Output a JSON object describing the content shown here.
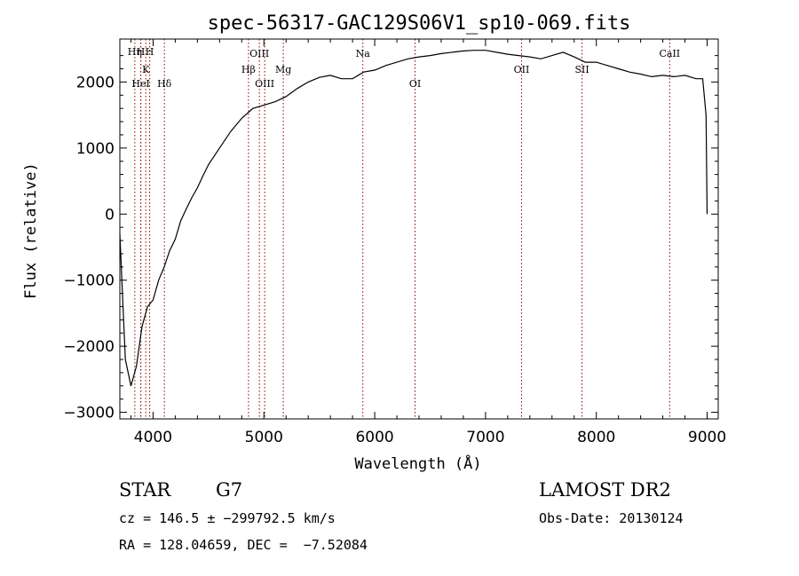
{
  "chart_data": {
    "type": "line",
    "title": "spec-56317-GAC129S06V1_sp10-069.fits",
    "xlabel": "Wavelength (Å)",
    "ylabel": "Flux (relative)",
    "xlim": [
      3700,
      9100
    ],
    "ylim": [
      -3100,
      2650
    ],
    "xticks": [
      4000,
      5000,
      6000,
      7000,
      8000,
      9000
    ],
    "xtick_labels": [
      "4000",
      "5000",
      "6000",
      "7000",
      "8000",
      "9000"
    ],
    "yticks": [
      -3000,
      -2000,
      -1000,
      0,
      1000,
      2000
    ],
    "ytick_labels": [
      "−3000",
      "−2000",
      "−1000",
      "0",
      "1000",
      "2000"
    ],
    "series": [
      {
        "x": [
          3700,
          3750,
          3800,
          3850,
          3900,
          3950,
          4000,
          4050,
          4100,
          4150,
          4200,
          4250,
          4300,
          4350,
          4400,
          4450,
          4500,
          4600,
          4700,
          4800,
          4900,
          5000,
          5100,
          5200,
          5300,
          5400,
          5500,
          5600,
          5700,
          5800,
          5900,
          6000,
          6100,
          6200,
          6300,
          6400,
          6500,
          6600,
          6700,
          6800,
          6900,
          7000,
          7100,
          7200,
          7300,
          7400,
          7500,
          7600,
          7700,
          7800,
          7900,
          8000,
          8100,
          8200,
          8300,
          8400,
          8500,
          8600,
          8700,
          8800,
          8900,
          8960,
          8990,
          9000
        ],
        "y": [
          -300,
          -2200,
          -2600,
          -2300,
          -1700,
          -1400,
          -1300,
          -1000,
          -800,
          -550,
          -380,
          -100,
          80,
          250,
          400,
          580,
          750,
          1000,
          1250,
          1450,
          1600,
          1650,
          1700,
          1780,
          1900,
          2000,
          2070,
          2100,
          2050,
          2050,
          2150,
          2180,
          2250,
          2300,
          2350,
          2380,
          2400,
          2430,
          2450,
          2470,
          2480,
          2480,
          2450,
          2420,
          2400,
          2380,
          2350,
          2400,
          2450,
          2380,
          2300,
          2300,
          2250,
          2200,
          2150,
          2120,
          2080,
          2100,
          2080,
          2100,
          2050,
          2050,
          1500,
          0
        ]
      }
    ],
    "spectral_lines": [
      {
        "name": "Hη",
        "x": 3835
      },
      {
        "name": "H",
        "x": 3889
      },
      {
        "name": "HeI",
        "x": 3889
      },
      {
        "name": "K",
        "x": 3934
      },
      {
        "name": "H",
        "x": 3969
      },
      {
        "name": "Hδ",
        "x": 4102
      },
      {
        "name": "OIII",
        "x": 4959
      },
      {
        "name": "Hβ",
        "x": 4861
      },
      {
        "name": "OIII",
        "x": 5007
      },
      {
        "name": "Mg",
        "x": 5175
      },
      {
        "name": "Na",
        "x": 5893
      },
      {
        "name": "OI",
        "x": 6364
      },
      {
        "name": "OII",
        "x": 7325
      },
      {
        "name": "SII",
        "x": 7871
      },
      {
        "name": "CaII",
        "x": 8662
      }
    ],
    "spectral_line_color": "#8b0000"
  },
  "footer": {
    "object_type": "STAR",
    "subclass": "G7",
    "survey": "LAMOST DR2",
    "cz_line": "cz = 146.5 ± −299792.5 km/s",
    "obs_date_line": "Obs-Date: 20130124",
    "radec_line": "RA = 128.04659, DEC =  −7.52084"
  }
}
